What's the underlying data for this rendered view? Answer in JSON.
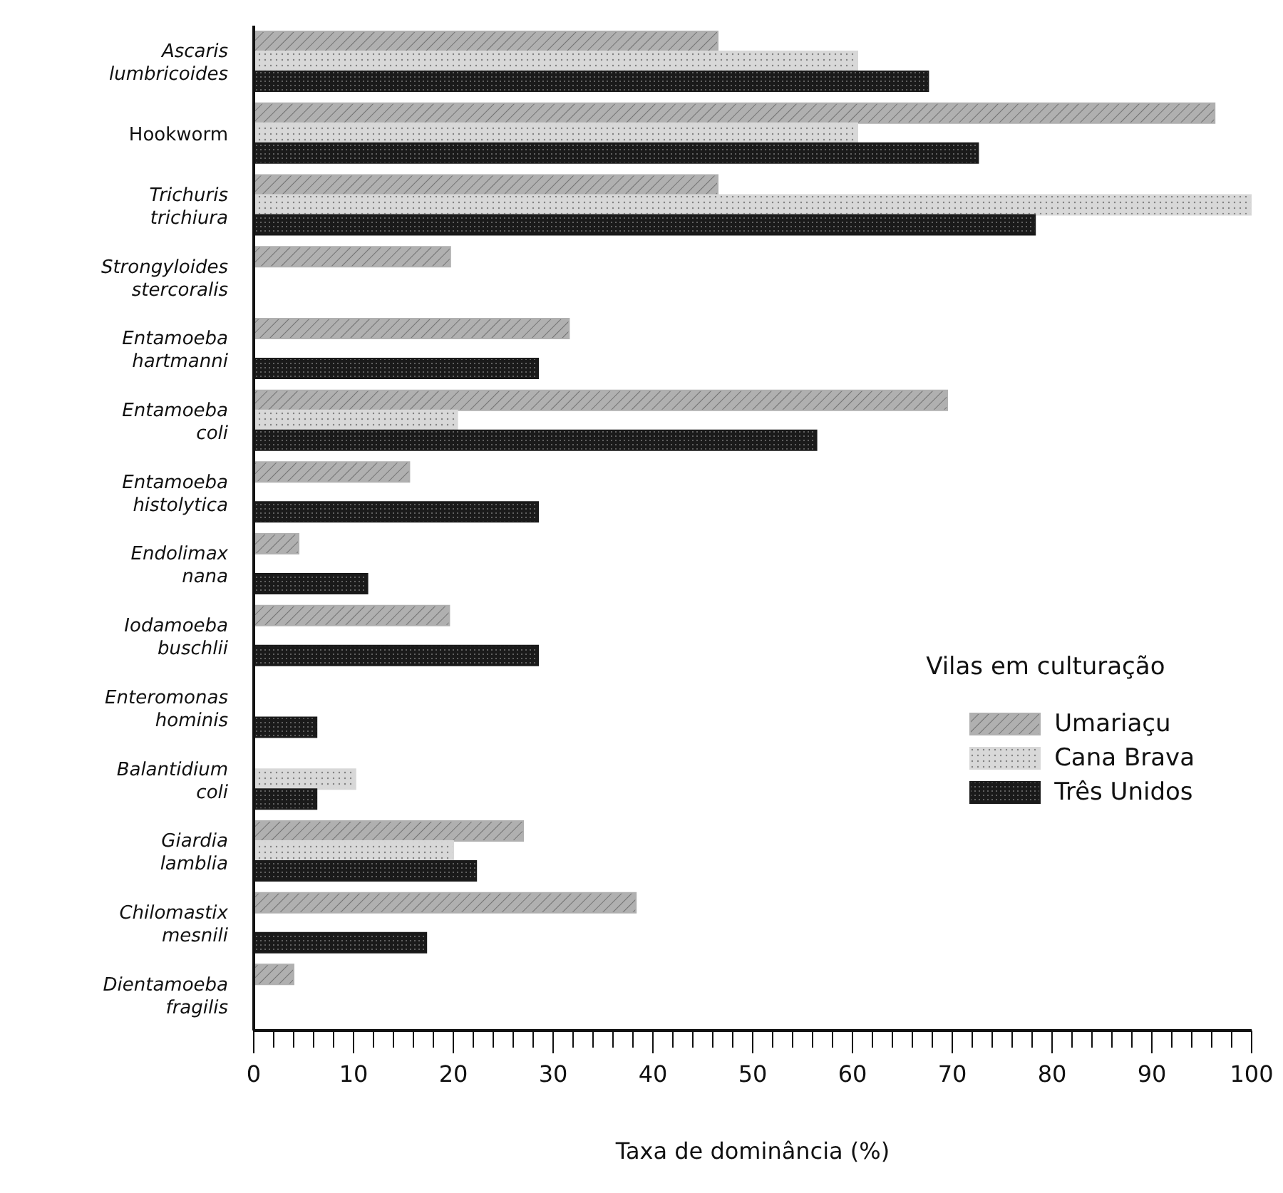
{
  "chart_data": {
    "type": "bar",
    "orientation": "horizontal",
    "xlabel": "Taxa de dominância (%)",
    "legend_title": "Vilas em culturação",
    "legend": "right",
    "categories": [
      "Ascaris lumbricoides",
      "Hookworm",
      "Trichuris trichiura",
      "Strongyloides stercoralis",
      "Entamoeba hartmanni",
      "Entamoeba coli",
      "Entamoeba histolytica",
      "Endolimax nana",
      "Iodamoeba buschlii",
      "Enteromonas hominis",
      "Balantidium coli",
      "Giardia lamblia",
      "Chilomastix mesnili",
      "Dientamoeba fragilis"
    ],
    "xlim": [
      0,
      100
    ],
    "xticks": [
      0,
      {
        "value": 2,
        "label": null
      },
      {
        "value": 4,
        "label": null
      },
      {
        "value": 6,
        "label": null
      },
      {
        "value": 8,
        "label": null
      },
      10,
      {
        "value": 12,
        "label": null
      },
      {
        "value": 14,
        "label": null
      },
      {
        "value": 16,
        "label": null
      },
      {
        "value": 18,
        "label": null
      },
      20,
      {
        "value": 22,
        "label": null
      },
      {
        "value": 24,
        "label": null
      },
      {
        "value": 26,
        "label": null
      },
      {
        "value": 28,
        "label": null
      },
      30,
      {
        "value": 32,
        "label": null
      },
      {
        "value": 34,
        "label": null
      },
      {
        "value": 36,
        "label": null
      },
      {
        "value": 38,
        "label": null
      },
      40,
      {
        "value": 42,
        "label": null
      },
      {
        "value": 44,
        "label": null
      },
      {
        "value": 46,
        "label": null
      },
      {
        "value": 48,
        "label": null
      },
      50,
      {
        "value": 52,
        "label": null
      },
      {
        "value": 54,
        "label": null
      },
      {
        "value": 56,
        "label": null
      },
      {
        "value": 58,
        "label": null
      },
      60,
      {
        "value": 62,
        "label": null
      },
      {
        "value": 64,
        "label": null
      },
      {
        "value": 66,
        "label": null
      },
      {
        "value": 68,
        "label": null
      },
      70,
      {
        "value": 72,
        "label": null
      },
      {
        "value": 74,
        "label": null
      },
      {
        "value": 76,
        "label": null
      },
      {
        "value": 78,
        "label": null
      },
      80,
      {
        "value": 82,
        "label": null
      },
      {
        "value": 84,
        "label": null
      },
      {
        "value": 86,
        "label": null
      },
      {
        "value": 88,
        "label": null
      },
      90,
      {
        "value": 92,
        "label": null
      },
      {
        "value": 94,
        "label": null
      },
      {
        "value": 96,
        "label": null
      },
      {
        "value": 98,
        "label": null
      },
      100
    ],
    "series": [
      {
        "name": "Umariaçu",
        "color": "#b0b0b0",
        "values": [
          46.5,
          96.3,
          46.5,
          19.7,
          31.6,
          69.5,
          15.6,
          4.5,
          19.6,
          null,
          null,
          27,
          38.3,
          4
        ]
      },
      {
        "name": "Cana Brava",
        "color": "#d8d8d8",
        "values": [
          60.5,
          60.5,
          100,
          null,
          null,
          20.4,
          null,
          null,
          null,
          null,
          10.2,
          20,
          null,
          null
        ]
      },
      {
        "name": "Três Unidos",
        "color": "#1a1a1a",
        "values": [
          67.6,
          72.6,
          78.3,
          null,
          28.5,
          56.4,
          28.5,
          11.4,
          28.5,
          6.3,
          6.3,
          22.3,
          17.3,
          null
        ]
      }
    ]
  }
}
